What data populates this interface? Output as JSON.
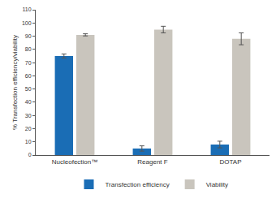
{
  "chart_data": {
    "type": "bar",
    "categories": [
      "Nucleofection™",
      "Reagent F",
      "DOTAP"
    ],
    "y_label": "% Transfection efficiency/viability",
    "series": [
      {
        "name": "Transfection efficiency",
        "color": "#1a6db5",
        "values": [
          75,
          5,
          8
        ],
        "errors": [
          1.5,
          2,
          2.5
        ]
      },
      {
        "name": "Viability",
        "color": "#c9c5bd",
        "values": [
          91,
          95,
          88
        ],
        "errors": [
          0.8,
          2.5,
          4.5
        ]
      }
    ],
    "ylim": [
      0,
      110
    ],
    "yticks": [
      0,
      10,
      20,
      30,
      40,
      50,
      60,
      70,
      80,
      90,
      100,
      110
    ],
    "grid": false,
    "legend": "bottom"
  }
}
